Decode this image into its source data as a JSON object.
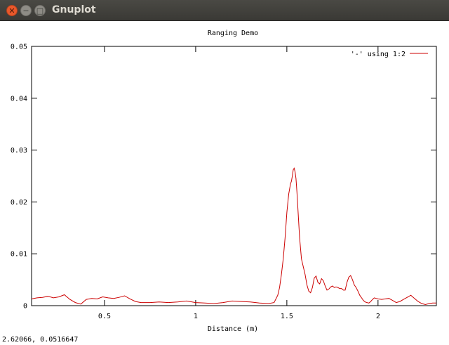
{
  "window": {
    "title": "Gnuplot",
    "close_glyph": "✕",
    "minimize_glyph": "−",
    "maximize_glyph": "□"
  },
  "status": {
    "coords": "2.62066,  0.0516647"
  },
  "colors": {
    "series": "#cc0000",
    "titlebar": "#3c3b37"
  },
  "chart_data": {
    "type": "line",
    "title": "Ranging Demo",
    "xlabel": "Distance (m)",
    "ylabel": "",
    "xlim": [
      0.1,
      2.32
    ],
    "ylim": [
      0,
      0.05
    ],
    "x_ticks": [
      0.5,
      1,
      1.5,
      2
    ],
    "x_tick_labels": [
      "0.5",
      "1",
      "1.5",
      "2"
    ],
    "y_ticks": [
      0,
      0.01,
      0.02,
      0.03,
      0.04,
      0.05
    ],
    "y_tick_labels": [
      "0",
      "0.01",
      "0.02",
      "0.03",
      "0.04",
      "0.05"
    ],
    "grid": false,
    "legend": "top-right",
    "series": [
      {
        "name": "'-' using 1:2",
        "x": [
          0.1,
          0.13,
          0.16,
          0.19,
          0.22,
          0.25,
          0.28,
          0.31,
          0.34,
          0.37,
          0.4,
          0.43,
          0.46,
          0.49,
          0.52,
          0.55,
          0.58,
          0.61,
          0.64,
          0.67,
          0.7,
          0.75,
          0.8,
          0.85,
          0.9,
          0.95,
          1.0,
          1.05,
          1.1,
          1.15,
          1.2,
          1.25,
          1.3,
          1.35,
          1.4,
          1.43,
          1.45,
          1.46,
          1.47,
          1.48,
          1.49,
          1.5,
          1.51,
          1.515,
          1.52,
          1.525,
          1.53,
          1.535,
          1.54,
          1.545,
          1.55,
          1.555,
          1.56,
          1.57,
          1.58,
          1.59,
          1.6,
          1.61,
          1.62,
          1.63,
          1.64,
          1.65,
          1.66,
          1.67,
          1.68,
          1.69,
          1.7,
          1.71,
          1.72,
          1.73,
          1.74,
          1.75,
          1.76,
          1.77,
          1.78,
          1.79,
          1.8,
          1.81,
          1.82,
          1.83,
          1.84,
          1.85,
          1.86,
          1.87,
          1.88,
          1.89,
          1.9,
          1.91,
          1.92,
          1.93,
          1.94,
          1.95,
          1.96,
          1.97,
          1.98,
          1.99,
          2.0,
          2.02,
          2.04,
          2.06,
          2.08,
          2.1,
          2.12,
          2.14,
          2.16,
          2.18,
          2.2,
          2.22,
          2.24,
          2.26,
          2.28,
          2.3,
          2.32
        ],
        "y": [
          0.0013,
          0.0015,
          0.0016,
          0.0018,
          0.0015,
          0.0017,
          0.0021,
          0.0012,
          0.0006,
          0.0003,
          0.0012,
          0.0014,
          0.0013,
          0.0017,
          0.0015,
          0.0014,
          0.0016,
          0.0019,
          0.0013,
          0.0008,
          0.0006,
          0.0006,
          0.0007,
          0.0006,
          0.0007,
          0.0009,
          0.0006,
          0.0005,
          0.0004,
          0.0006,
          0.0009,
          0.0008,
          0.0007,
          0.0005,
          0.0004,
          0.0006,
          0.002,
          0.0035,
          0.006,
          0.009,
          0.013,
          0.018,
          0.0215,
          0.0225,
          0.0235,
          0.024,
          0.025,
          0.0262,
          0.0265,
          0.0258,
          0.0245,
          0.022,
          0.019,
          0.013,
          0.009,
          0.0075,
          0.006,
          0.004,
          0.0028,
          0.0025,
          0.0035,
          0.0053,
          0.0057,
          0.0045,
          0.0042,
          0.0052,
          0.0048,
          0.0038,
          0.003,
          0.0032,
          0.0036,
          0.0038,
          0.0035,
          0.0036,
          0.0035,
          0.0033,
          0.0033,
          0.003,
          0.003,
          0.0045,
          0.0055,
          0.0058,
          0.005,
          0.004,
          0.0035,
          0.0028,
          0.002,
          0.0015,
          0.001,
          0.0007,
          0.0006,
          0.0005,
          0.0008,
          0.0012,
          0.0015,
          0.0014,
          0.0013,
          0.0012,
          0.0013,
          0.0014,
          0.001,
          0.0006,
          0.0008,
          0.0012,
          0.0016,
          0.002,
          0.0014,
          0.0008,
          0.0004,
          0.0002,
          0.0004,
          0.0005,
          0.0005
        ]
      }
    ]
  }
}
